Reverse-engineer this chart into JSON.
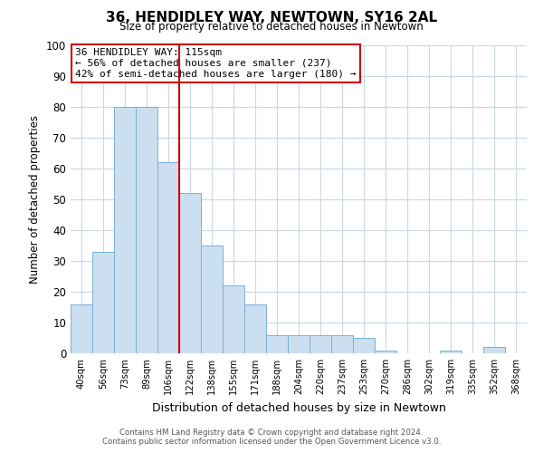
{
  "title": "36, HENDIDLEY WAY, NEWTOWN, SY16 2AL",
  "subtitle": "Size of property relative to detached houses in Newtown",
  "xlabel": "Distribution of detached houses by size in Newtown",
  "ylabel": "Number of detached properties",
  "bar_labels": [
    "40sqm",
    "56sqm",
    "73sqm",
    "89sqm",
    "106sqm",
    "122sqm",
    "138sqm",
    "155sqm",
    "171sqm",
    "188sqm",
    "204sqm",
    "220sqm",
    "237sqm",
    "253sqm",
    "270sqm",
    "286sqm",
    "302sqm",
    "319sqm",
    "335sqm",
    "352sqm",
    "368sqm"
  ],
  "bar_values": [
    16,
    33,
    80,
    80,
    62,
    52,
    35,
    22,
    16,
    6,
    6,
    6,
    6,
    5,
    1,
    0,
    0,
    1,
    0,
    2,
    0
  ],
  "bar_color": "#ccdff0",
  "bar_edge_color": "#7bafd4",
  "vline_x": 4.5,
  "vline_color": "#cc0000",
  "annotation_title": "36 HENDIDLEY WAY: 115sqm",
  "annotation_line1": "← 56% of detached houses are smaller (237)",
  "annotation_line2": "42% of semi-detached houses are larger (180) →",
  "annotation_box_color": "#ffffff",
  "annotation_box_edge": "#cc0000",
  "ylim": [
    0,
    100
  ],
  "yticks": [
    0,
    10,
    20,
    30,
    40,
    50,
    60,
    70,
    80,
    90,
    100
  ],
  "footer1": "Contains HM Land Registry data © Crown copyright and database right 2024.",
  "footer2": "Contains public sector information licensed under the Open Government Licence v3.0.",
  "background_color": "#ffffff",
  "grid_color": "#c8d8e8"
}
